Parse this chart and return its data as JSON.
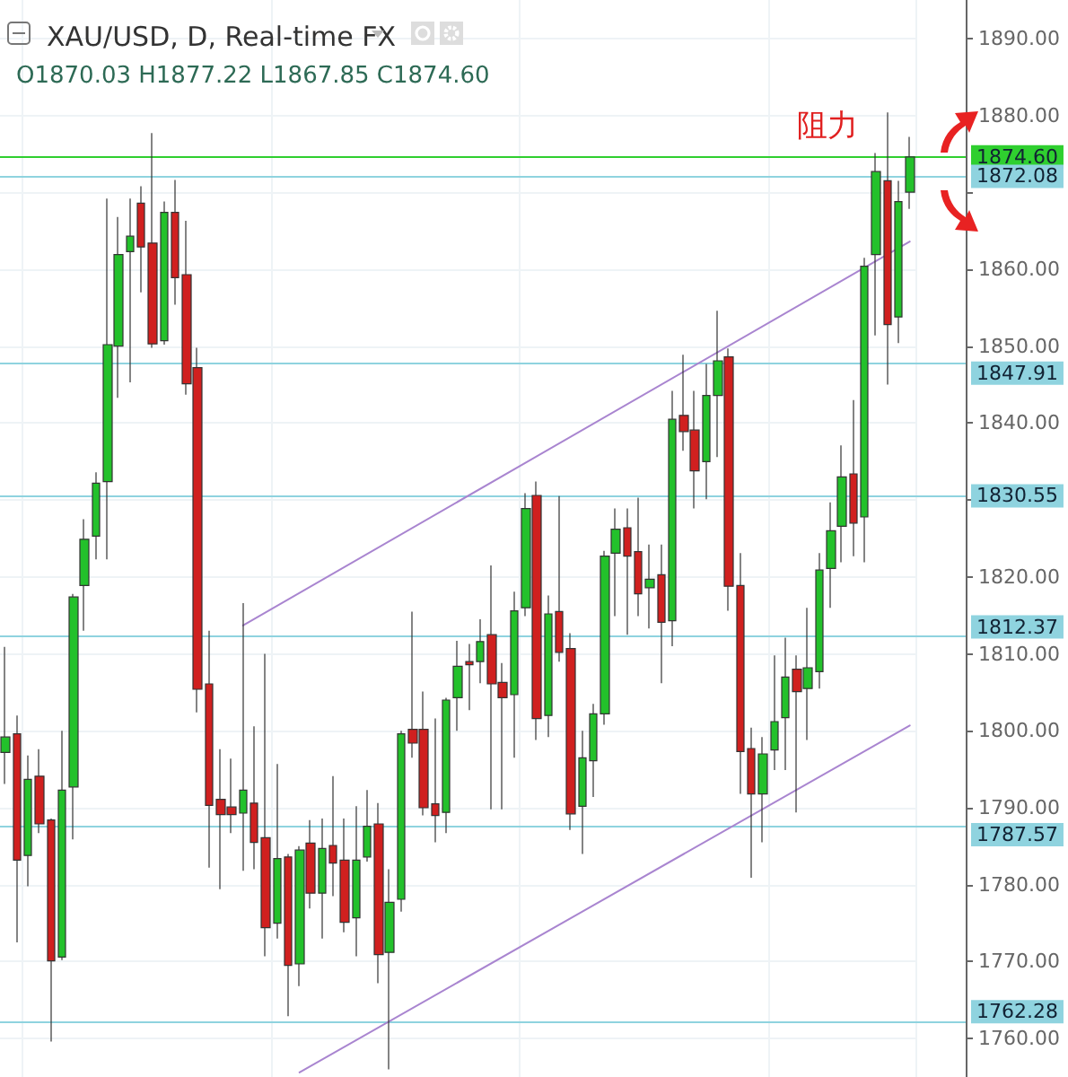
{
  "chart_data": {
    "type": "candlestick",
    "title": "XAU/USD, D, Real-time FX",
    "subtitle": "O1870.03 H1877.22 L1867.85 C1874.60",
    "categories": [
      null,
      null,
      null,
      null,
      null,
      null,
      null,
      null,
      null,
      null,
      null,
      null,
      null,
      null,
      null,
      null,
      null,
      null,
      null,
      null,
      null,
      null,
      null,
      null,
      null,
      null,
      null,
      null,
      null,
      null,
      null,
      null,
      null,
      null,
      null,
      null,
      null,
      null,
      null,
      null,
      null,
      null,
      null,
      null,
      null,
      null,
      null,
      null,
      null,
      null,
      null,
      null,
      null,
      null,
      null,
      null,
      null,
      null,
      null,
      null,
      null,
      null,
      null,
      null,
      null,
      null,
      null,
      null,
      null,
      null,
      null,
      null,
      null,
      null,
      null,
      null,
      null,
      null,
      null,
      null,
      null
    ],
    "ohlc": [
      [
        1797.2,
        1810.9,
        1793.1,
        1799.2
      ],
      [
        1799.6,
        1802.0,
        1772.5,
        1783.2
      ],
      [
        1783.8,
        1796.8,
        1779.8,
        1793.7
      ],
      [
        1794.1,
        1797.6,
        1786.7,
        1787.9
      ],
      [
        1788.4,
        1788.6,
        1759.6,
        1770.1
      ],
      [
        1770.6,
        1800.0,
        1770.2,
        1792.3
      ],
      [
        1792.7,
        1817.8,
        1785.9,
        1817.4
      ],
      [
        1818.9,
        1827.5,
        1813.0,
        1824.9
      ],
      [
        1825.3,
        1833.6,
        1822.3,
        1832.2
      ],
      [
        1832.4,
        1869.2,
        1822.3,
        1850.2
      ],
      [
        1850.0,
        1866.8,
        1843.3,
        1861.9
      ],
      [
        1862.3,
        1869.2,
        1845.3,
        1864.3
      ],
      [
        1868.6,
        1870.8,
        1857.0,
        1862.9
      ],
      [
        1863.4,
        1877.7,
        1849.8,
        1850.3
      ],
      [
        1850.7,
        1868.8,
        1850.2,
        1867.4
      ],
      [
        1867.4,
        1871.6,
        1855.4,
        1858.9
      ],
      [
        1859.3,
        1866.3,
        1843.7,
        1845.1
      ],
      [
        1847.2,
        1849.8,
        1802.4,
        1805.4
      ],
      [
        1806.1,
        1813.0,
        1782.2,
        1790.3
      ],
      [
        1791.1,
        1797.6,
        1779.4,
        1789.1
      ],
      [
        1790.1,
        1796.4,
        1786.7,
        1789.1
      ],
      [
        1789.3,
        1816.6,
        1781.8,
        1792.3
      ],
      [
        1790.6,
        1800.6,
        1782.0,
        1785.5
      ],
      [
        1786.1,
        1810.0,
        1770.7,
        1774.4
      ],
      [
        1775.0,
        1795.7,
        1773.0,
        1783.4
      ],
      [
        1783.6,
        1784.0,
        1762.9,
        1769.5
      ],
      [
        1769.7,
        1785.0,
        1766.8,
        1784.5
      ],
      [
        1785.4,
        1788.4,
        1776.9,
        1778.9
      ],
      [
        1778.9,
        1788.6,
        1773.0,
        1784.7
      ],
      [
        1785.1,
        1794.1,
        1778.5,
        1782.8
      ],
      [
        1783.2,
        1788.6,
        1773.8,
        1775.1
      ],
      [
        1775.7,
        1790.2,
        1770.7,
        1783.2
      ],
      [
        1783.6,
        1792.3,
        1783.0,
        1787.6
      ],
      [
        1787.9,
        1790.6,
        1767.2,
        1770.9
      ],
      [
        1771.2,
        1782.0,
        1756.0,
        1777.7
      ],
      [
        1778.1,
        1800.0,
        1776.5,
        1799.6
      ],
      [
        1800.2,
        1815.5,
        1796.5,
        1798.4
      ],
      [
        1800.2,
        1805.1,
        1789.0,
        1790.0
      ],
      [
        1790.5,
        1801.6,
        1785.5,
        1789.0
      ],
      [
        1789.4,
        1804.3,
        1786.7,
        1804.0
      ],
      [
        1804.3,
        1811.7,
        1800.0,
        1808.4
      ],
      [
        1809.0,
        1811.3,
        1802.7,
        1808.6
      ],
      [
        1809.0,
        1814.5,
        1806.2,
        1811.6
      ],
      [
        1812.5,
        1821.5,
        1789.8,
        1806.1
      ],
      [
        1806.3,
        1808.8,
        1789.8,
        1804.3
      ],
      [
        1804.7,
        1818.1,
        1796.5,
        1815.6
      ],
      [
        1816.0,
        1830.9,
        1814.9,
        1828.9
      ],
      [
        1830.6,
        1832.4,
        1798.8,
        1801.6
      ],
      [
        1802.0,
        1817.6,
        1799.2,
        1815.2
      ],
      [
        1815.5,
        1830.5,
        1809.0,
        1810.2
      ],
      [
        1810.7,
        1812.7,
        1787.1,
        1789.2
      ],
      [
        1790.2,
        1800.0,
        1784.0,
        1796.5
      ],
      [
        1796.1,
        1803.5,
        1791.4,
        1802.2
      ],
      [
        1802.2,
        1823.4,
        1800.8,
        1822.7
      ],
      [
        1823.1,
        1828.9,
        1814.9,
        1826.2
      ],
      [
        1826.4,
        1828.9,
        1812.5,
        1822.7
      ],
      [
        1823.3,
        1830.3,
        1814.9,
        1817.8
      ],
      [
        1818.6,
        1824.2,
        1813.3,
        1819.7
      ],
      [
        1820.3,
        1824.2,
        1806.2,
        1814.1
      ],
      [
        1814.3,
        1844.2,
        1811.0,
        1840.5
      ],
      [
        1841.0,
        1848.9,
        1836.4,
        1838.9
      ],
      [
        1839.1,
        1844.2,
        1828.9,
        1833.8
      ],
      [
        1835.0,
        1847.7,
        1830.1,
        1843.6
      ],
      [
        1843.6,
        1854.6,
        1835.6,
        1848.1
      ],
      [
        1848.6,
        1849.7,
        1815.6,
        1818.8
      ],
      [
        1818.9,
        1823.1,
        1791.8,
        1797.3
      ],
      [
        1797.7,
        1800.4,
        1780.9,
        1791.8
      ],
      [
        1791.8,
        1799.2,
        1785.5,
        1797.0
      ],
      [
        1797.5,
        1809.8,
        1794.9,
        1801.2
      ],
      [
        1801.7,
        1812.1,
        1794.9,
        1807.0
      ],
      [
        1808.0,
        1809.8,
        1789.4,
        1805.1
      ],
      [
        1805.5,
        1816.0,
        1798.8,
        1808.2
      ],
      [
        1807.7,
        1823.1,
        1805.5,
        1820.9
      ],
      [
        1821.1,
        1829.7,
        1816.0,
        1826.0
      ],
      [
        1826.6,
        1837.1,
        1821.9,
        1833.0
      ],
      [
        1833.4,
        1843.0,
        1822.7,
        1827.0
      ],
      [
        1827.8,
        1861.5,
        1821.9,
        1860.4
      ],
      [
        1861.9,
        1875.1,
        1851.4,
        1872.7
      ],
      [
        1871.5,
        1880.4,
        1845.0,
        1852.8
      ],
      [
        1853.8,
        1871.5,
        1850.4,
        1868.8
      ],
      [
        1870.03,
        1877.22,
        1867.85,
        1874.6
      ]
    ],
    "colors": [
      "#23c12b",
      "#d0201f",
      "#23c12b",
      "#d0201f",
      "#d0201f",
      "#23c12b",
      "#23c12b",
      "#23c12b",
      "#23c12b",
      "#23c12b",
      "#23c12b",
      "#23c12b",
      "#d0201f",
      "#d0201f",
      "#23c12b",
      "#d0201f",
      "#d0201f",
      "#d0201f",
      "#d0201f",
      "#d0201f",
      "#d0201f",
      "#23c12b",
      "#d0201f",
      "#d0201f",
      "#23c12b",
      "#d0201f",
      "#23c12b",
      "#d0201f",
      "#23c12b",
      "#d0201f",
      "#d0201f",
      "#23c12b",
      "#23c12b",
      "#d0201f",
      "#23c12b",
      "#23c12b",
      "#d0201f",
      "#d0201f",
      "#d0201f",
      "#23c12b",
      "#23c12b",
      "#d0201f",
      "#23c12b",
      "#d0201f",
      "#d0201f",
      "#23c12b",
      "#23c12b",
      "#d0201f",
      "#23c12b",
      "#d0201f",
      "#d0201f",
      "#23c12b",
      "#23c12b",
      "#23c12b",
      "#23c12b",
      "#d0201f",
      "#d0201f",
      "#23c12b",
      "#d0201f",
      "#23c12b",
      "#d0201f",
      "#d0201f",
      "#23c12b",
      "#23c12b",
      "#d0201f",
      "#d0201f",
      "#d0201f",
      "#23c12b",
      "#23c12b",
      "#23c12b",
      "#d0201f",
      "#23c12b",
      "#23c12b",
      "#23c12b",
      "#23c12b",
      "#d0201f",
      "#23c12b",
      "#23c12b",
      "#d0201f",
      "#23c12b",
      "#23c12b"
    ],
    "series": [
      {
        "type": "line",
        "color": "#a985d0",
        "values": [
          null,
          null,
          null,
          null,
          null,
          null,
          null,
          null,
          null,
          null,
          null,
          null,
          null,
          null,
          null,
          null,
          null,
          null,
          null,
          null,
          null,
          1813.7,
          null,
          null,
          null,
          null,
          null,
          null,
          null,
          null,
          null,
          null,
          null,
          null,
          null,
          null,
          null,
          null,
          null,
          null,
          null,
          null,
          null,
          null,
          null,
          null,
          null,
          null,
          null,
          null,
          null,
          null,
          null,
          null,
          null,
          null,
          null,
          null,
          null,
          null,
          null,
          null,
          null,
          null,
          null,
          null,
          null,
          null,
          null,
          null,
          null,
          null,
          null,
          null,
          null,
          null,
          null,
          null,
          null,
          null,
          1863.6
        ]
      },
      {
        "type": "line",
        "color": "#a985d0",
        "values": [
          null,
          null,
          null,
          null,
          null,
          null,
          null,
          null,
          null,
          null,
          null,
          null,
          null,
          null,
          null,
          null,
          null,
          null,
          null,
          null,
          null,
          null,
          null,
          null,
          null,
          null,
          1755.6,
          null,
          null,
          null,
          null,
          null,
          null,
          null,
          null,
          null,
          null,
          null,
          null,
          null,
          null,
          null,
          null,
          null,
          null,
          null,
          null,
          null,
          null,
          null,
          null,
          null,
          null,
          null,
          null,
          null,
          null,
          null,
          null,
          null,
          null,
          null,
          null,
          null,
          null,
          null,
          null,
          null,
          null,
          null,
          null,
          null,
          null,
          null,
          null,
          null,
          null,
          null,
          null,
          null,
          1800.7
        ]
      }
    ],
    "ylim": [
      1755,
      1895
    ],
    "yticks": [
      {
        "value": 1760,
        "label": "1760.00"
      },
      {
        "value": 1770,
        "label": "1770.00"
      },
      {
        "value": 1780,
        "label": "1780.00"
      },
      {
        "value": 1790,
        "label": "1790.00"
      },
      {
        "value": 1800,
        "label": "1800.00"
      },
      {
        "value": 1810,
        "label": "1810.00"
      },
      {
        "value": 1820,
        "label": "1820.00"
      },
      {
        "value": 1830,
        "label": null
      },
      {
        "value": 1840,
        "label": "1840.00"
      },
      {
        "value": 1850,
        "label": "1850.00"
      },
      {
        "value": 1860,
        "label": "1860.00"
      },
      {
        "value": 1870,
        "label": null
      },
      {
        "value": 1880,
        "label": "1880.00"
      },
      {
        "value": 1890,
        "label": "1890.00"
      }
    ],
    "ref_lines": [
      {
        "axis": "y",
        "value": 1874.6,
        "label": "1874.60",
        "color": "#2fcf2f"
      },
      {
        "axis": "y",
        "value": 1872.08,
        "label": "1872.08",
        "color": "#8fd3df"
      },
      {
        "axis": "y",
        "value": 1847.91,
        "label": "1847.91",
        "color": "#8fd3df"
      },
      {
        "axis": "y",
        "value": 1830.55,
        "label": "1830.55",
        "color": "#8fd3df"
      },
      {
        "axis": "y",
        "value": 1812.37,
        "label": "1812.37",
        "color": "#8fd3df"
      },
      {
        "axis": "y",
        "value": 1787.57,
        "label": "1787.57",
        "color": "#8fd3df"
      },
      {
        "axis": "y",
        "value": 1762.28,
        "label": "1762.28",
        "color": "#8fd3df"
      }
    ],
    "annotations": [
      "阻力"
    ],
    "grid": true,
    "tick_labels": "y"
  }
}
